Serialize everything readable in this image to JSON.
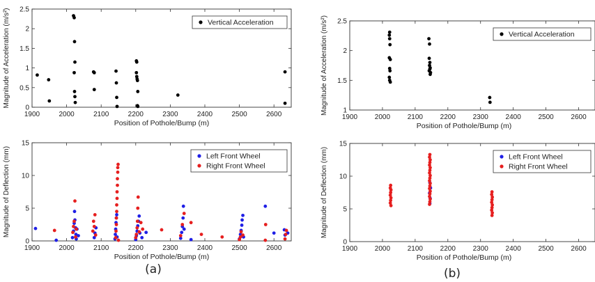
{
  "captions": {
    "a": "(a)",
    "b": "(b)"
  },
  "chart_data": [
    {
      "id": "a-top",
      "type": "scatter",
      "xlabel": "Position of Pothole/Bump (m)",
      "ylabel": "Magnitude of Acceleration (m/s²)",
      "xlim": [
        1900,
        2650
      ],
      "ylim": [
        0,
        2.5
      ],
      "xticks": [
        "1900",
        "2000",
        "2100",
        "2200",
        "2300",
        "2400",
        "2500",
        "2600"
      ],
      "yticks": [
        "0",
        "0.5",
        "1",
        "1.5",
        "2",
        "2.5"
      ],
      "legend": "top-right",
      "series": [
        {
          "name": "Vertical Acceleration",
          "color": "#000000",
          "points": [
            [
              1915,
              0.82
            ],
            [
              1948,
              0.7
            ],
            [
              1950,
              0.16
            ],
            [
              2020,
              2.33
            ],
            [
              2022,
              2.28
            ],
            [
              2023,
              1.67
            ],
            [
              2024,
              1.15
            ],
            [
              2022,
              0.88
            ],
            [
              2023,
              0.4
            ],
            [
              2024,
              0.27
            ],
            [
              2025,
              0.12
            ],
            [
              2078,
              0.9
            ],
            [
              2080,
              0.88
            ],
            [
              2080,
              0.45
            ],
            [
              2143,
              0.92
            ],
            [
              2144,
              0.62
            ],
            [
              2145,
              0.25
            ],
            [
              2146,
              0.02
            ],
            [
              2202,
              1.18
            ],
            [
              2203,
              1.15
            ],
            [
              2202,
              0.88
            ],
            [
              2203,
              0.78
            ],
            [
              2204,
              0.72
            ],
            [
              2205,
              0.68
            ],
            [
              2206,
              0.4
            ],
            [
              2205,
              0.04
            ],
            [
              2206,
              0.02
            ],
            [
              2322,
              0.31
            ],
            [
              2632,
              0.9
            ],
            [
              2632,
              0.1
            ]
          ]
        }
      ]
    },
    {
      "id": "a-bottom",
      "type": "scatter",
      "xlabel": "Position of Pothole/Bump (m)",
      "ylabel": "Magnitude of Deflection (mm)",
      "xlim": [
        1900,
        2650
      ],
      "ylim": [
        0,
        15
      ],
      "xticks": [
        "1900",
        "2000",
        "2100",
        "2200",
        "2300",
        "2400",
        "2500",
        "2600"
      ],
      "yticks": [
        "0",
        "5",
        "10",
        "15"
      ],
      "legend": "top-right",
      "series": [
        {
          "name": "Left Front Wheel",
          "color": "#1f1fe6",
          "points": [
            [
              1910,
              1.9
            ],
            [
              1970,
              0.1
            ],
            [
              2017,
              0.5
            ],
            [
              2020,
              1.5
            ],
            [
              2022,
              2.7
            ],
            [
              2023,
              4.5
            ],
            [
              2024,
              3.2
            ],
            [
              2026,
              2.0
            ],
            [
              2027,
              1.0
            ],
            [
              2028,
              0.3
            ],
            [
              2030,
              1.8
            ],
            [
              2034,
              0.8
            ],
            [
              2080,
              0.5
            ],
            [
              2082,
              1.2
            ],
            [
              2085,
              2.0
            ],
            [
              2140,
              0.3
            ],
            [
              2141,
              1.0
            ],
            [
              2142,
              1.8
            ],
            [
              2143,
              2.8
            ],
            [
              2144,
              3.5
            ],
            [
              2145,
              4.0
            ],
            [
              2146,
              0.6
            ],
            [
              2200,
              0.2
            ],
            [
              2202,
              0.8
            ],
            [
              2204,
              1.5
            ],
            [
              2206,
              2.3
            ],
            [
              2208,
              3.0
            ],
            [
              2210,
              3.8
            ],
            [
              2212,
              1.2
            ],
            [
              2218,
              0.5
            ],
            [
              2230,
              1.3
            ],
            [
              2330,
              0.4
            ],
            [
              2333,
              1.3
            ],
            [
              2335,
              2.2
            ],
            [
              2337,
              3.5
            ],
            [
              2338,
              5.3
            ],
            [
              2340,
              1.8
            ],
            [
              2360,
              0.2
            ],
            [
              2500,
              0.3
            ],
            [
              2503,
              1.0
            ],
            [
              2505,
              1.6
            ],
            [
              2507,
              2.4
            ],
            [
              2508,
              3.2
            ],
            [
              2510,
              3.9
            ],
            [
              2512,
              0.6
            ],
            [
              2575,
              5.3
            ],
            [
              2600,
              1.2
            ],
            [
              2630,
              1.7
            ],
            [
              2632,
              0.9
            ],
            [
              2640,
              1.2
            ]
          ]
        },
        {
          "name": "Right Front Wheel",
          "color": "#e61f1f",
          "points": [
            [
              1965,
              1.6
            ],
            [
              2018,
              1.3
            ],
            [
              2020,
              2.2
            ],
            [
              2022,
              3.0
            ],
            [
              2024,
              6.1
            ],
            [
              2026,
              0.6
            ],
            [
              2028,
              1.8
            ],
            [
              2076,
              1.5
            ],
            [
              2078,
              3.0
            ],
            [
              2080,
              2.2
            ],
            [
              2082,
              4.0
            ],
            [
              2084,
              0.9
            ],
            [
              2142,
              0.5
            ],
            [
              2143,
              1.5
            ],
            [
              2144,
              2.5
            ],
            [
              2144,
              3.5
            ],
            [
              2145,
              4.5
            ],
            [
              2145,
              5.5
            ],
            [
              2146,
              6.5
            ],
            [
              2146,
              7.5
            ],
            [
              2147,
              8.5
            ],
            [
              2147,
              9.5
            ],
            [
              2148,
              10.5
            ],
            [
              2148,
              11.2
            ],
            [
              2149,
              11.7
            ],
            [
              2150,
              0.1
            ],
            [
              2200,
              0.5
            ],
            [
              2202,
              1.0
            ],
            [
              2204,
              2.0
            ],
            [
              2205,
              3.0
            ],
            [
              2206,
              5.0
            ],
            [
              2207,
              6.7
            ],
            [
              2210,
              1.4
            ],
            [
              2215,
              2.8
            ],
            [
              2220,
              1.8
            ],
            [
              2275,
              1.7
            ],
            [
              2330,
              0.8
            ],
            [
              2335,
              2.5
            ],
            [
              2340,
              4.2
            ],
            [
              2360,
              2.8
            ],
            [
              2390,
              1.0
            ],
            [
              2450,
              0.6
            ],
            [
              2500,
              0.2
            ],
            [
              2503,
              0.6
            ],
            [
              2505,
              1.4
            ],
            [
              2510,
              0.9
            ],
            [
              2575,
              0.1
            ],
            [
              2576,
              2.5
            ],
            [
              2632,
              0.3
            ],
            [
              2634,
              1.0
            ],
            [
              2636,
              1.6
            ]
          ]
        }
      ]
    },
    {
      "id": "b-top",
      "type": "scatter",
      "xlabel": "Position of Pothole/Bump (m)",
      "ylabel": "Magnitude of Acceleration (m/s²)",
      "xlim": [
        1900,
        2650
      ],
      "ylim": [
        1,
        2.5
      ],
      "xticks": [
        "1900",
        "2000",
        "2100",
        "2200",
        "2300",
        "2400",
        "2500",
        "2600"
      ],
      "yticks": [
        "1",
        "1.5",
        "2",
        "2.5"
      ],
      "legend": "top-right",
      "series": [
        {
          "name": "Vertical Acceleration",
          "color": "#000000",
          "points": [
            [
              2022,
              2.31
            ],
            [
              2021,
              2.26
            ],
            [
              2022,
              2.2
            ],
            [
              2023,
              2.1
            ],
            [
              2021,
              1.88
            ],
            [
              2024,
              1.85
            ],
            [
              2022,
              1.7
            ],
            [
              2023,
              1.66
            ],
            [
              2021,
              1.55
            ],
            [
              2022,
              1.5
            ],
            [
              2024,
              1.47
            ],
            [
              2142,
              2.2
            ],
            [
              2144,
              2.11
            ],
            [
              2143,
              1.87
            ],
            [
              2145,
              1.8
            ],
            [
              2144,
              1.75
            ],
            [
              2146,
              1.71
            ],
            [
              2145,
              1.69
            ],
            [
              2143,
              1.66
            ],
            [
              2147,
              1.63
            ],
            [
              2146,
              1.6
            ],
            [
              2328,
              1.21
            ],
            [
              2329,
              1.13
            ]
          ]
        }
      ]
    },
    {
      "id": "b-bottom",
      "type": "scatter",
      "xlabel": "Position of Pothole/Bump (m)",
      "ylabel": "Magnitude of Deflection (mm)",
      "xlim": [
        1900,
        2650
      ],
      "ylim": [
        0,
        15
      ],
      "xticks": [
        "1900",
        "2000",
        "2100",
        "2200",
        "2300",
        "2400",
        "2500",
        "2600"
      ],
      "yticks": [
        "0",
        "5",
        "10",
        "15"
      ],
      "legend": "top-right",
      "series": [
        {
          "name": "Left Front Wheel",
          "color": "#1f1fe6",
          "points": [
            [
              2145,
              5.8
            ],
            [
              2146,
              6.6
            ],
            [
              2144,
              7.4
            ],
            [
              2147,
              8.2
            ],
            [
              2145,
              9.0
            ]
          ]
        },
        {
          "name": "Right Front Wheel",
          "color": "#e61f1f",
          "points": [
            [
              2025,
              8.6
            ],
            [
              2024,
              8.2
            ],
            [
              2026,
              7.9
            ],
            [
              2025,
              7.5
            ],
            [
              2024,
              7.1
            ],
            [
              2026,
              6.7
            ],
            [
              2025,
              6.3
            ],
            [
              2024,
              5.9
            ],
            [
              2026,
              5.5
            ],
            [
              2145,
              13.3
            ],
            [
              2144,
              12.9
            ],
            [
              2146,
              12.5
            ],
            [
              2145,
              12.1
            ],
            [
              2144,
              11.7
            ],
            [
              2146,
              11.3
            ],
            [
              2145,
              10.9
            ],
            [
              2144,
              10.5
            ],
            [
              2146,
              10.1
            ],
            [
              2145,
              9.7
            ],
            [
              2144,
              9.3
            ],
            [
              2146,
              8.9
            ],
            [
              2145,
              8.5
            ],
            [
              2144,
              8.1
            ],
            [
              2146,
              7.7
            ],
            [
              2145,
              7.3
            ],
            [
              2144,
              6.9
            ],
            [
              2146,
              6.5
            ],
            [
              2145,
              6.1
            ],
            [
              2144,
              5.7
            ],
            [
              2335,
              7.6
            ],
            [
              2334,
              7.2
            ],
            [
              2336,
              6.8
            ],
            [
              2335,
              6.4
            ],
            [
              2334,
              6.0
            ],
            [
              2336,
              5.6
            ],
            [
              2335,
              5.2
            ],
            [
              2334,
              4.8
            ],
            [
              2336,
              4.4
            ],
            [
              2335,
              4.0
            ]
          ]
        }
      ]
    }
  ]
}
